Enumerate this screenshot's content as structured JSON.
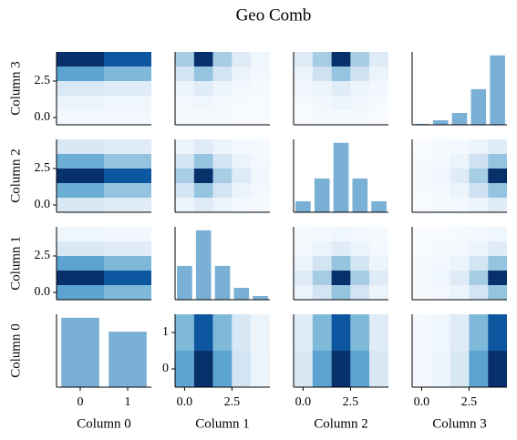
{
  "chart_data": {
    "type": "pairgrid",
    "title": "Geo Comb",
    "variables": [
      {
        "name": "Column 0",
        "levels": [
          0,
          1
        ],
        "lim": [
          -0.5,
          1.5
        ],
        "ticks": [
          0,
          1
        ]
      },
      {
        "name": "Column 1",
        "levels": [
          0,
          1,
          2,
          3,
          4
        ],
        "lim": [
          -0.5,
          4.5
        ],
        "ticks": [
          {
            "value": 0,
            "label": "0.0"
          },
          {
            "value": 2.5,
            "label": "2.5"
          }
        ]
      },
      {
        "name": "Column 2",
        "levels": [
          0,
          1,
          2,
          3,
          4
        ],
        "lim": [
          -0.5,
          4.5
        ],
        "ticks": [
          {
            "value": 0,
            "label": "0.0"
          },
          {
            "value": 2.5,
            "label": "2.5"
          }
        ]
      },
      {
        "name": "Column 3",
        "levels": [
          0,
          1,
          2,
          3,
          4
        ],
        "lim": [
          -0.5,
          4.5
        ],
        "ticks": [
          {
            "value": 0,
            "label": "0.0"
          },
          {
            "value": 2.5,
            "label": "2.5"
          }
        ]
      }
    ],
    "bar_color": "#7aafd6",
    "colormap": [
      "#f7fbff",
      "#deebf7",
      "#c6dbef",
      "#9ecae1",
      "#6baed6",
      "#4292c6",
      "#2171b5",
      "#08519c",
      "#08306b"
    ],
    "cells": [
      [
        {
          "type": "bar",
          "values": [
            75,
            60
          ]
        },
        {
          "type": "heatmap",
          "z": [
            [
              55,
              100,
              55,
              18,
              6
            ],
            [
              45,
              85,
              45,
              15,
              5
            ]
          ]
        },
        {
          "type": "heatmap",
          "z": [
            [
              15,
              55,
              100,
              55,
              15
            ],
            [
              12,
              45,
              85,
              45,
              12
            ]
          ]
        },
        {
          "type": "heatmap",
          "z": [
            [
              2,
              5,
              15,
              55,
              100
            ],
            [
              2,
              4,
              12,
              45,
              85
            ]
          ]
        }
      ],
      [
        {
          "type": "heatmap",
          "z": [
            [
              55,
              45
            ],
            [
              100,
              85
            ],
            [
              55,
              45
            ],
            [
              15,
              12
            ],
            [
              4,
              3
            ]
          ]
        },
        {
          "type": "bar",
          "values": [
            37,
            76,
            37,
            13,
            4
          ]
        },
        {
          "type": "heatmap",
          "z": [
            [
              6,
              18,
              40,
              18,
              6
            ],
            [
              12,
              35,
              100,
              35,
              12
            ],
            [
              6,
              18,
              40,
              18,
              6
            ],
            [
              2,
              6,
              12,
              6,
              2
            ],
            [
              1,
              2,
              4,
              2,
              1
            ]
          ]
        },
        {
          "type": "heatmap",
          "z": [
            [
              1,
              2,
              6,
              18,
              40
            ],
            [
              1,
              4,
              12,
              35,
              100
            ],
            [
              1,
              2,
              6,
              18,
              40
            ],
            [
              0,
              1,
              2,
              6,
              12
            ],
            [
              0,
              0,
              1,
              2,
              4
            ]
          ]
        }
      ],
      [
        {
          "type": "heatmap",
          "z": [
            [
              15,
              12
            ],
            [
              50,
              40
            ],
            [
              100,
              85
            ],
            [
              50,
              40
            ],
            [
              15,
              12
            ]
          ]
        },
        {
          "type": "heatmap",
          "z": [
            [
              6,
              12,
              6,
              2,
              1
            ],
            [
              18,
              40,
              18,
              6,
              2
            ],
            [
              35,
              100,
              35,
              12,
              4
            ],
            [
              18,
              40,
              18,
              6,
              2
            ],
            [
              6,
              12,
              6,
              2,
              1
            ]
          ]
        },
        {
          "type": "bar",
          "values": [
            12,
            37,
            76,
            37,
            12
          ]
        },
        {
          "type": "heatmap",
          "z": [
            [
              0,
              1,
              2,
              6,
              12
            ],
            [
              1,
              2,
              6,
              20,
              40
            ],
            [
              1,
              4,
              12,
              35,
              100
            ],
            [
              1,
              2,
              6,
              20,
              40
            ],
            [
              0,
              1,
              2,
              6,
              12
            ]
          ]
        }
      ],
      [
        {
          "type": "heatmap",
          "z": [
            [
              2,
              2
            ],
            [
              5,
              4
            ],
            [
              15,
              12
            ],
            [
              55,
              45
            ],
            [
              100,
              85
            ]
          ]
        },
        {
          "type": "heatmap",
          "z": [
            [
              1,
              1,
              1,
              0,
              0
            ],
            [
              2,
              4,
              2,
              1,
              0
            ],
            [
              6,
              12,
              6,
              2,
              1
            ],
            [
              18,
              40,
              18,
              6,
              2
            ],
            [
              35,
              100,
              35,
              12,
              4
            ]
          ]
        },
        {
          "type": "heatmap",
          "z": [
            [
              0,
              1,
              1,
              1,
              0
            ],
            [
              1,
              3,
              5,
              3,
              1
            ],
            [
              3,
              6,
              12,
              6,
              3
            ],
            [
              6,
              20,
              40,
              20,
              6
            ],
            [
              12,
              35,
              100,
              35,
              12
            ]
          ]
        },
        {
          "type": "bar",
          "values": [
            1,
            5,
            13,
            39,
            76
          ]
        }
      ]
    ]
  }
}
